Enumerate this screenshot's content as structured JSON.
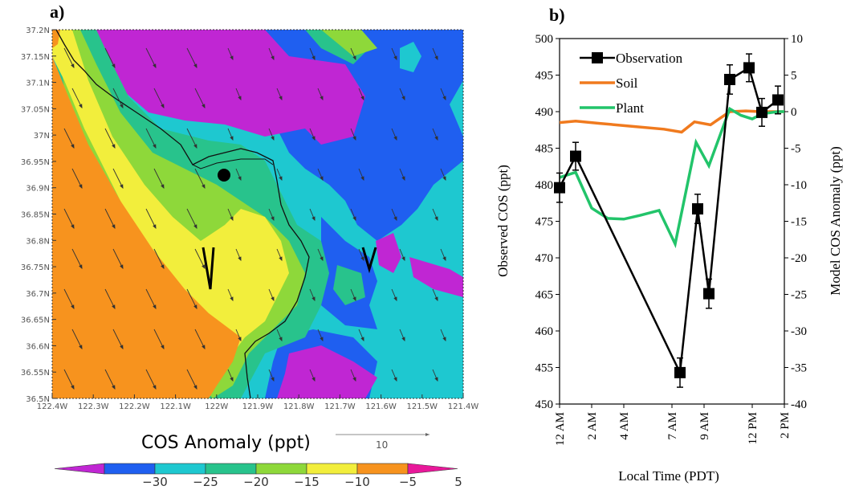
{
  "panel_a": {
    "label": "a)",
    "colorbar_title": "COS Anomaly (ppt)",
    "vector_ref_label": "10",
    "marker_label": "V",
    "chart_data": {
      "type": "heatmap",
      "title": "",
      "xlabel": "",
      "ylabel": "",
      "x_ticks": [
        "122.4W",
        "122.3W",
        "122.2W",
        "122.1W",
        "122W",
        "121.9W",
        "121.8W",
        "121.7W",
        "121.6W",
        "121.5W",
        "121.4W"
      ],
      "y_ticks": [
        "36.5N",
        "36.55N",
        "36.6N",
        "36.65N",
        "36.7N",
        "36.75N",
        "36.8N",
        "36.85N",
        "36.9N",
        "36.95N",
        "37N",
        "37.05N",
        "37.1N",
        "37.15N",
        "37.2N"
      ],
      "xlim": [
        -122.4,
        -121.4
      ],
      "ylim": [
        36.5,
        37.2
      ],
      "colorbar_levels": [
        -30,
        -25,
        -20,
        -15,
        -10,
        -5,
        5
      ],
      "colorbar_tick_labels": [
        "−30",
        "−25",
        "−20",
        "−15",
        "−10",
        "−5",
        "5"
      ],
      "colorbar_colors": [
        "#c026d3",
        "#1f5ff0",
        "#1ec8d0",
        "#28c38c",
        "#8ed83a",
        "#f2ee3c",
        "#f7931e",
        "#e8189a"
      ],
      "site_marker": {
        "lon": -121.97,
        "lat": 36.93
      }
    }
  },
  "panel_b": {
    "label": "b)",
    "chart_data": {
      "type": "line",
      "title": "",
      "xlabel": "Local Time (PDT)",
      "ylabel": "Observed COS (ppt)",
      "y2label": "Model COS Anomaly  (ppt)",
      "x_ticks": [
        0,
        2,
        4,
        7,
        9,
        12,
        14
      ],
      "x_tick_labels": [
        "12 AM",
        "2 AM",
        "4 AM",
        "7 AM",
        "9 AM",
        "12 PM",
        "2 PM"
      ],
      "xlim": [
        0,
        14
      ],
      "ylim": [
        450,
        500
      ],
      "y_ticks": [
        450,
        455,
        460,
        465,
        470,
        475,
        480,
        485,
        490,
        495,
        500
      ],
      "y2lim": [
        -40,
        10
      ],
      "y2_ticks": [
        -40,
        -35,
        -30,
        -25,
        -20,
        -15,
        -10,
        -5,
        0,
        5,
        10
      ],
      "legend_position": "top-left",
      "series": [
        {
          "name": "Observation",
          "axis": "left",
          "color": "#000000",
          "x": [
            0.0,
            1.0,
            7.5,
            8.6,
            9.3,
            10.6,
            11.8,
            12.6,
            13.6
          ],
          "values": [
            479.6,
            483.9,
            454.3,
            476.7,
            465.1,
            494.4,
            496.0,
            489.9,
            491.6
          ],
          "errors": [
            2.0,
            1.9,
            2.0,
            2.0,
            2.0,
            2.0,
            1.9,
            1.9,
            1.9
          ]
        },
        {
          "name": "Soil",
          "axis": "right",
          "color": "#f07a1e",
          "x": [
            0.0,
            1.0,
            2.5,
            4.5,
            6.5,
            7.6,
            8.4,
            9.4,
            10.6,
            11.6,
            12.5,
            13.5,
            14.0
          ],
          "values": [
            -1.5,
            -1.3,
            -1.6,
            -2.0,
            -2.4,
            -2.8,
            -1.4,
            -1.8,
            0.0,
            0.1,
            0.0,
            0.0,
            0.0
          ]
        },
        {
          "name": "Plant",
          "axis": "right",
          "color": "#22c46a",
          "x": [
            0.0,
            1.0,
            2.0,
            3.0,
            4.0,
            5.0,
            6.2,
            7.2,
            8.5,
            9.3,
            10.6,
            11.3,
            12.0,
            12.6,
            13.6,
            14.0
          ],
          "values": [
            -9.0,
            -8.3,
            -13.2,
            -14.6,
            -14.7,
            -14.2,
            -13.5,
            -18.1,
            -4.2,
            -7.4,
            0.4,
            -0.5,
            -1.0,
            -0.3,
            0.0,
            0.0
          ]
        }
      ]
    }
  }
}
